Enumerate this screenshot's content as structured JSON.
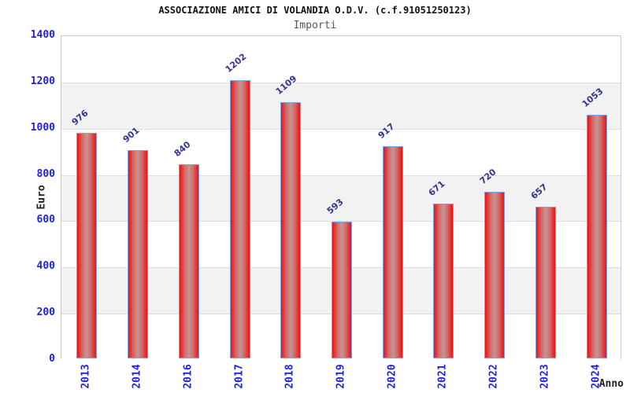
{
  "header": {
    "title": "ASSOCIAZIONE AMICI DI VOLANDIA O.D.V. (c.f.91051250123)",
    "subtitle": "Importi"
  },
  "axes": {
    "y_label": "Euro",
    "x_label": "Anno"
  },
  "chart_data": {
    "type": "bar",
    "title": "ASSOCIAZIONE AMICI DI VOLANDIA O.D.V. (c.f.91051250123)",
    "subtitle": "Importi",
    "xlabel": "Anno",
    "ylabel": "Euro",
    "categories": [
      "2013",
      "2014",
      "2016",
      "2017",
      "2018",
      "2019",
      "2020",
      "2021",
      "2022",
      "2023",
      "2024"
    ],
    "values": [
      976,
      901,
      840,
      1202,
      1109,
      593,
      917,
      671,
      720,
      657,
      1053
    ],
    "ylim": [
      0,
      1400
    ],
    "ytick_step": 200,
    "yticks": [
      0,
      200,
      400,
      600,
      800,
      1000,
      1200,
      1400
    ],
    "grid": true,
    "background_bands": "alternating white / light gray every 200",
    "legend_position": "none",
    "value_labels": "rotated above bars",
    "xtick_rotation_deg": -90
  },
  "colors": {
    "tick_label_blue": "#2222dd",
    "value_label_navy": "#333399",
    "bar_edge": "#ee1111",
    "bar_mid": "#d46a6a",
    "bar_center": "#c59595",
    "bar_border": "#7aa5e8",
    "band_gray": "#f2f2f2",
    "band_white": "#ffffff",
    "gridline": "#dddddd",
    "plot_border": "#cbcbcb",
    "title_color": "#111111",
    "subtitle_color": "#555555"
  }
}
